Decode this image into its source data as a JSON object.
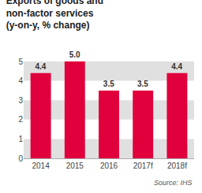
{
  "chart_data": {
    "type": "bar",
    "title": "Exports of goods and\nnon-factor services\n(y-on-y, % change)",
    "categories": [
      "2014",
      "2015",
      "2016",
      "2017f",
      "2018f"
    ],
    "values": [
      4.4,
      5.0,
      3.5,
      3.5,
      4.4
    ],
    "value_labels": [
      "4.4",
      "5.0",
      "3.5",
      "3.5",
      "4.4"
    ],
    "data_labels": true,
    "color": "#e0003c",
    "ylim": [
      0,
      5
    ],
    "yticks": [
      0,
      1,
      2,
      3,
      4,
      5
    ],
    "grid": true,
    "annotations": [
      "Source: IHS"
    ]
  }
}
